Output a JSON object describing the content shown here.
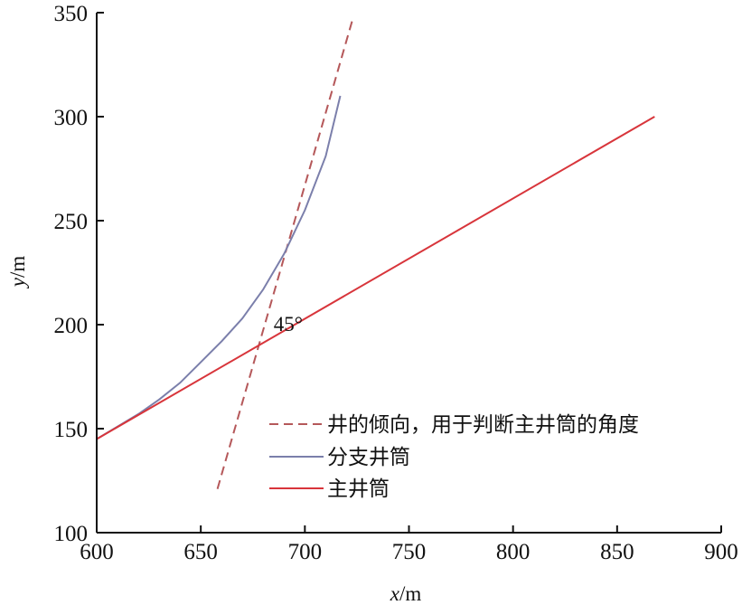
{
  "chart_data": {
    "type": "line",
    "title": "",
    "xlabel": {
      "var": "x",
      "unit": "/m"
    },
    "ylabel": {
      "var": "y",
      "unit": "/m"
    },
    "xlim": [
      600,
      900
    ],
    "ylim": [
      100,
      350
    ],
    "xticks": [
      600,
      650,
      700,
      750,
      800,
      850,
      900
    ],
    "yticks": [
      100,
      150,
      200,
      250,
      300,
      350
    ],
    "grid": false,
    "legend_position": "bottom-right",
    "series": [
      {
        "name": "井的倾向，用于判断主井筒的角度",
        "style": "dashed",
        "color": "#b5585a",
        "x": [
          658,
          723
        ],
        "y": [
          121,
          347
        ]
      },
      {
        "name": "分支井筒",
        "style": "solid",
        "color": "#7b7fab",
        "x": [
          600,
          610,
          620,
          630,
          640,
          650,
          660,
          670,
          680,
          690,
          700,
          710,
          717
        ],
        "y": [
          145,
          151,
          157,
          164,
          172,
          182,
          192,
          203,
          217,
          234,
          255,
          281,
          310
        ]
      },
      {
        "name": "主井筒",
        "style": "solid",
        "color": "#d8353b",
        "x": [
          600,
          868
        ],
        "y": [
          145,
          300
        ]
      }
    ],
    "annotations": [
      {
        "text": "45°",
        "x": 685,
        "y": 197
      }
    ]
  }
}
